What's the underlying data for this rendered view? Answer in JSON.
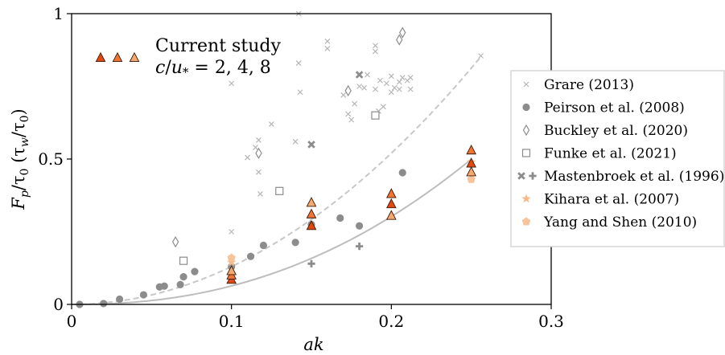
{
  "chart_data": {
    "type": "scatter",
    "xlabel": "ak",
    "ylabel_main": "F",
    "ylabel_sub": "p",
    "ylabel_rest": "/τ",
    "ylabel_zero": "0",
    "ylabel_paren_open": " (τ",
    "ylabel_sub_w": "w",
    "ylabel_paren_mid": "/τ",
    "ylabel_paren_close": ")",
    "xlim": [
      0,
      0.3
    ],
    "ylim": [
      0,
      1
    ],
    "xticks": [
      0,
      0.1,
      0.2,
      0.3
    ],
    "xtick_labels": [
      "0",
      "0.1",
      "0.2",
      "0.3"
    ],
    "yticks": [
      0,
      0.5,
      1
    ],
    "ytick_labels": [
      "0",
      "0.5",
      "1"
    ],
    "annotation": {
      "title": "Current study",
      "line2_var": "c",
      "line2_mid": "/",
      "line2_var2": "u",
      "line2_star": "*",
      "line2_rest": " = 2, 4, 8",
      "triangle_colors": [
        "#e04a10",
        "#f07535",
        "#f5a870"
      ]
    },
    "legend_position": "center-right",
    "series": [
      {
        "name": "Grare (2013)",
        "marker": "x",
        "color": "#b5b5b5",
        "x": [
          0.1,
          0.1,
          0.115,
          0.117,
          0.117,
          0.125,
          0.11,
          0.118,
          0.14,
          0.142,
          0.142,
          0.143,
          0.16,
          0.16,
          0.17,
          0.173,
          0.175,
          0.177,
          0.18,
          0.183,
          0.185,
          0.19,
          0.19,
          0.19,
          0.192,
          0.193,
          0.195,
          0.197,
          0.2,
          0.2,
          0.202,
          0.205,
          0.205,
          0.207,
          0.21,
          0.212,
          0.212,
          0.256
        ],
        "y": [
          0.76,
          0.25,
          0.54,
          0.565,
          0.455,
          0.62,
          0.505,
          0.38,
          0.56,
          0.83,
          1.0,
          0.73,
          0.905,
          0.88,
          0.72,
          0.655,
          0.635,
          0.69,
          0.75,
          0.745,
          0.79,
          0.89,
          0.87,
          0.74,
          0.665,
          0.77,
          0.68,
          0.76,
          0.73,
          0.785,
          0.745,
          0.765,
          0.74,
          0.78,
          0.77,
          0.74,
          0.78,
          0.855
        ]
      },
      {
        "name": "Peirson et al. (2008)",
        "marker": "circle",
        "color": "#8c8c8c",
        "x": [
          0.005,
          0.02,
          0.03,
          0.045,
          0.055,
          0.058,
          0.068,
          0.07,
          0.077,
          0.1,
          0.112,
          0.12,
          0.14,
          0.15,
          0.168,
          0.18,
          0.207
        ],
        "y": [
          0.0,
          0.003,
          0.018,
          0.033,
          0.06,
          0.063,
          0.068,
          0.095,
          0.113,
          0.13,
          0.165,
          0.203,
          0.213,
          0.275,
          0.297,
          0.27,
          0.453
        ]
      },
      {
        "name": "Buckley et al. (2020)",
        "marker": "diamond",
        "color": "#8c8c8c",
        "x": [
          0.065,
          0.117,
          0.173,
          0.205,
          0.207
        ],
        "y": [
          0.215,
          0.52,
          0.735,
          0.91,
          0.935
        ]
      },
      {
        "name": "Funke et al. (2021)",
        "marker": "square",
        "color": "#8c8c8c",
        "x": [
          0.07,
          0.13,
          0.19
        ],
        "y": [
          0.15,
          0.39,
          0.65
        ]
      },
      {
        "name": "Mastenbroek et al. (1996)",
        "marker": "xplus",
        "color": "#8c8c8c",
        "x_cross": [
          0.15,
          0.18
        ],
        "y_cross": [
          0.55,
          0.79
        ],
        "x_plus": [
          0.15,
          0.18
        ],
        "y_plus": [
          0.14,
          0.2
        ]
      },
      {
        "name": "Kihara et al. (2007)",
        "marker": "star",
        "color": "#f7b98a",
        "x": [
          0.1,
          0.25
        ],
        "y": [
          0.145,
          0.49
        ]
      },
      {
        "name": "Yang and Shen (2010)",
        "marker": "pentagon",
        "color": "#f7c39a",
        "x": [
          0.1,
          0.25
        ],
        "y": [
          0.16,
          0.43
        ]
      },
      {
        "name": "",
        "marker": "triangle",
        "color": "#e04a10",
        "x": [
          0.1,
          0.15,
          0.2,
          0.25
        ],
        "y": [
          0.085,
          0.27,
          0.345,
          0.485
        ]
      },
      {
        "name": "",
        "marker": "triangle",
        "color": "#f07535",
        "x": [
          0.1,
          0.15,
          0.2,
          0.25
        ],
        "y": [
          0.1,
          0.31,
          0.38,
          0.53
        ]
      },
      {
        "name": "",
        "marker": "triangle",
        "color": "#f5a870",
        "x": [
          0.1,
          0.15,
          0.2,
          0.25
        ],
        "y": [
          0.115,
          0.35,
          0.305,
          0.455
        ]
      }
    ],
    "curves": [
      {
        "style": "solid",
        "color": "#bdbdbd",
        "coef": 11.3,
        "power": 2.25,
        "xmin": 0,
        "xmax": 0.25
      },
      {
        "style": "dashed",
        "color": "#c8c8c8",
        "coef": 13.0,
        "power": 2.0,
        "xmin": 0,
        "xmax": 0.256
      }
    ]
  }
}
